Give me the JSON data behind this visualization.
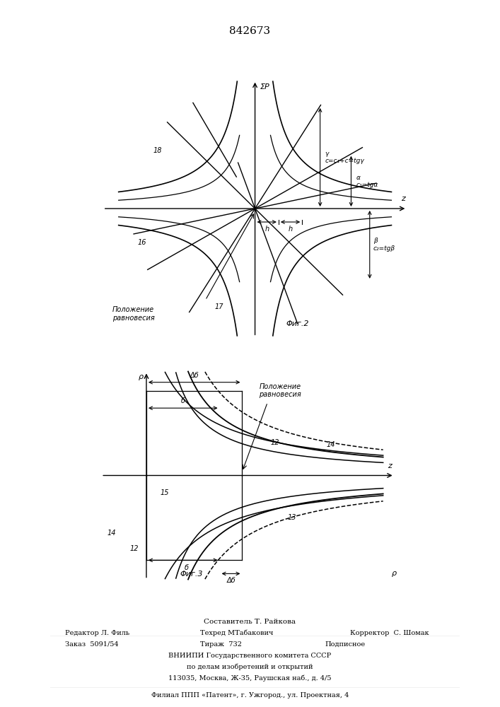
{
  "patent_number": "842673",
  "fig2_title": "Φиг.2",
  "fig3_title": "Φиг.3",
  "fig2_axis_z": "z",
  "fig2_axis_p": "ΣP",
  "fig3_axis_z": "z",
  "fig3_axis_p": "ρ",
  "label_gamma_line": "γ",
  "label_gamma_eq": "c=c₁+c=tgγ",
  "label_alpha_line": "α",
  "label_alpha_eq": "c₁=tgα",
  "label_beta_line": "β",
  "label_beta_eq": "c₂=tgβ",
  "label_h1": "h",
  "label_h2": "h",
  "label_16": "16",
  "label_17": "17",
  "label_18": "18",
  "label_pos_eq_fig2_1": "Положение",
  "label_pos_eq_fig2_2": "равновесия",
  "label_pos_eq_fig3_1": "Положение",
  "label_pos_eq_fig3_2": "равновесия",
  "label_delta_b": "Δб",
  "label_b": "б",
  "label_12_top": "12",
  "label_14_top": "14",
  "label_15": "15",
  "label_13": "13",
  "label_12_bot": "12",
  "label_14_bot": "14",
  "footer_line1": "Составитель Т. Райкова",
  "footer_line2a": "Редактор Л. Филь",
  "footer_line2b": "Техред МТабакович",
  "footer_line2c": "Корректор  С. Шомак",
  "footer_line3a": "Заказ  5091/54",
  "footer_line3b": "Тираж  732",
  "footer_line3c": "Подписное",
  "footer_line4": "ВНИИПИ Государственного комитета СССР",
  "footer_line5": "по делам изобретений и открытий",
  "footer_line6": "113035, Москва, Ж-35, Раушская наб., д. 4/5",
  "footer_line7": "Филиал ППП «Патент», г. Ужгород., ул. Проектная, 4",
  "bg_color": "#ffffff",
  "line_color": "#000000"
}
